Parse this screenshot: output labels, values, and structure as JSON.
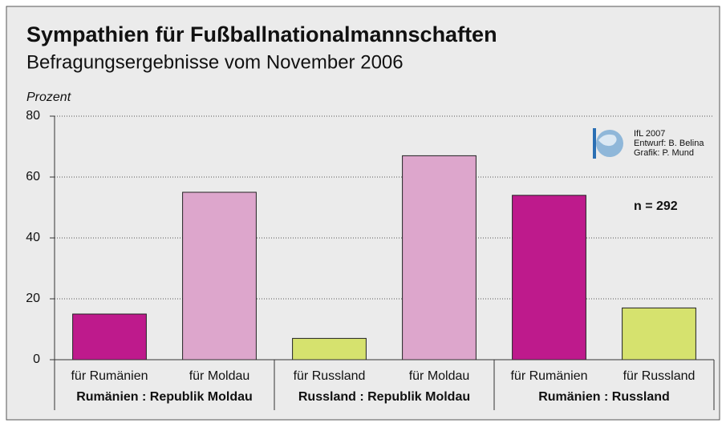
{
  "chart_data": {
    "type": "bar",
    "title": "Sympathien für Fußballnationalmannschaften",
    "subtitle": "Befragungsergebnisse vom November 2006",
    "y_label": "Prozent",
    "groups": [
      {
        "name": "Rumänien : Republik Moldau",
        "categories": [
          "für Rumänien",
          "für Moldau"
        ],
        "values": [
          15,
          55
        ],
        "colors": [
          "#be1a8c",
          "#dda6cc"
        ]
      },
      {
        "name": "Russland : Republik Moldau",
        "categories": [
          "für Russland",
          "für Moldau"
        ],
        "values": [
          7,
          67
        ],
        "colors": [
          "#d6e26e",
          "#dda6cc"
        ]
      },
      {
        "name": "Rumänien : Russland",
        "categories": [
          "für Rumänien",
          "für Russland"
        ],
        "values": [
          54,
          17
        ],
        "colors": [
          "#be1a8c",
          "#d6e26e"
        ]
      }
    ],
    "ylim": [
      0,
      80
    ],
    "yticks": [
      0,
      20,
      40,
      60,
      80
    ],
    "grid": true,
    "annotations": [
      "n = 292"
    ],
    "credits": [
      "IfL 2007",
      "Entwurf: B. Belina",
      "Grafik: P. Mund"
    ]
  }
}
